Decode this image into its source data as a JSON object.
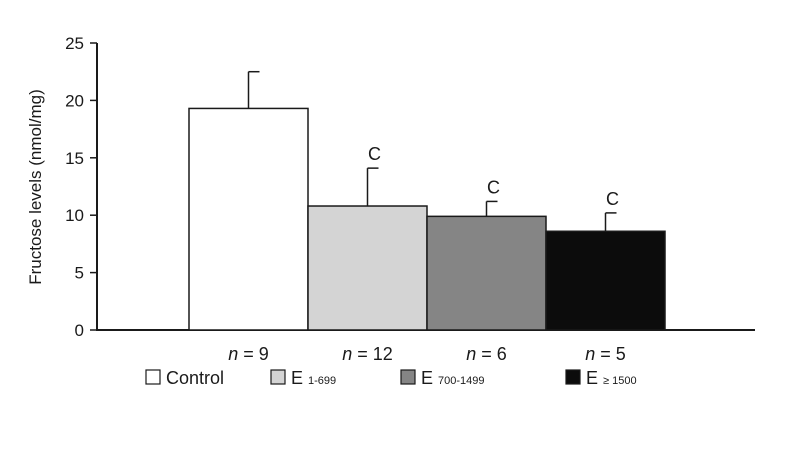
{
  "chart_data": {
    "type": "bar",
    "title": "",
    "xlabel": "",
    "ylabel": "Fructose levels (nmol/mg)",
    "ylim": [
      0,
      25
    ],
    "yticks": [
      0,
      5,
      10,
      15,
      20,
      25
    ],
    "grid": false,
    "categories": [
      {
        "name": "Control",
        "value": 19.3,
        "error": 3.2,
        "fill": "#ffffff",
        "n_prefix": "n",
        "n_text": " = 9",
        "sig": "",
        "legend_main": "Control",
        "legend_sub": ""
      },
      {
        "name": "E 1-699",
        "value": 10.8,
        "error": 3.3,
        "fill": "#d4d4d4",
        "n_prefix": "n",
        "n_text": " = 12",
        "sig": "C",
        "legend_main": "E",
        "legend_sub": "1-699"
      },
      {
        "name": "E 700-1499",
        "value": 9.9,
        "error": 1.3,
        "fill": "#858585",
        "n_prefix": "n",
        "n_text": " = 6",
        "sig": "C",
        "legend_main": "E",
        "legend_sub": "700-1499"
      },
      {
        "name": "E ≥ 1500",
        "value": 8.6,
        "error": 1.6,
        "fill": "#0c0c0c",
        "n_prefix": "n",
        "n_text": " = 5",
        "sig": "C",
        "legend_main": "E",
        "legend_sub": "≥ 1500"
      }
    ],
    "legend_position": "bottom"
  },
  "colors": {
    "axis": "#1a1a1a",
    "bar_stroke": "#1a1a1a"
  }
}
